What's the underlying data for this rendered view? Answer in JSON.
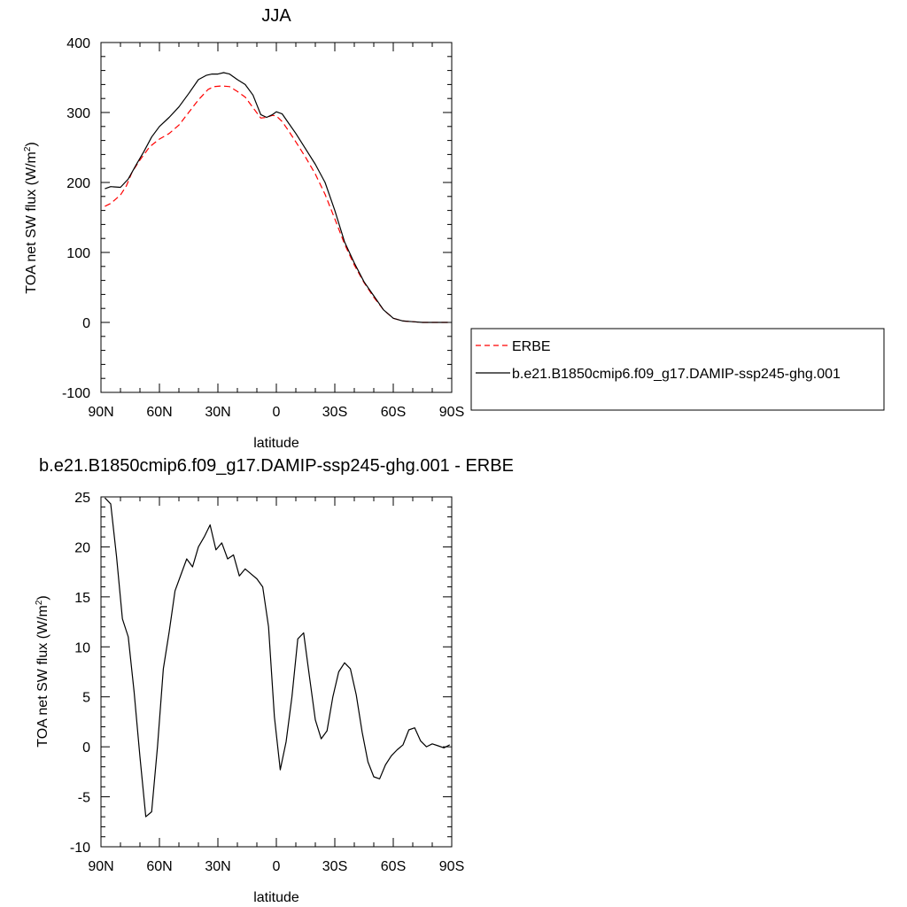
{
  "chart_data": [
    {
      "type": "line",
      "title": "JJA",
      "xlabel": "latitude",
      "ylabel": "TOA net SW flux (W/m",
      "ylabel_sup": "2",
      "ylabel_close": ")",
      "xlim": [
        90,
        -90
      ],
      "ylim": [
        -100,
        400
      ],
      "x_ticks": [
        90,
        60,
        30,
        0,
        -30,
        -60,
        -90
      ],
      "x_tick_labels": [
        "90N",
        "60N",
        "30N",
        "0",
        "30S",
        "60S",
        "90S"
      ],
      "y_ticks": [
        -100,
        0,
        100,
        200,
        300,
        400
      ],
      "y_tick_labels": [
        "-100",
        "0",
        "100",
        "200",
        "300",
        "400"
      ],
      "legend": [
        {
          "name": "ERBE",
          "color": "#ff0000",
          "dash": "dashed"
        },
        {
          "name": "b.e21.B1850cmip6.f09_g17.DAMIP-ssp245-ghg.001",
          "color": "#000000",
          "dash": "solid"
        }
      ],
      "series": [
        {
          "name": "ERBE",
          "color": "#ff0000",
          "dash": "dashed",
          "x": [
            88,
            85,
            80,
            77,
            74,
            70,
            65,
            60,
            55,
            50,
            45,
            40,
            35,
            32,
            28,
            24,
            20,
            16,
            12,
            8,
            5,
            2,
            0,
            -3,
            -6,
            -10,
            -15,
            -20,
            -25,
            -30,
            -35,
            -40,
            -45,
            -50,
            -55,
            -60,
            -65,
            -70,
            -75,
            -80,
            -85,
            -88
          ],
          "y": [
            166,
            170,
            182,
            195,
            215,
            232,
            251,
            262,
            270,
            282,
            300,
            318,
            333,
            337,
            338,
            337,
            330,
            322,
            307,
            292,
            293,
            296,
            295,
            287,
            275,
            258,
            236,
            212,
            183,
            148,
            112,
            82,
            57,
            36,
            18,
            6,
            2,
            1,
            0,
            0,
            0,
            0
          ]
        },
        {
          "name": "b.e21.B1850cmip6.f09_g17.DAMIP-ssp245-ghg.001",
          "color": "#000000",
          "dash": "solid",
          "x": [
            88,
            85,
            80,
            76,
            72,
            68,
            64,
            60,
            55,
            50,
            45,
            40,
            36,
            33,
            30,
            27,
            24,
            20,
            16,
            12,
            8,
            5,
            2,
            0,
            -3,
            -6,
            -10,
            -15,
            -20,
            -25,
            -30,
            -35,
            -40,
            -45,
            -50,
            -55,
            -60,
            -65,
            -70,
            -75,
            -80,
            -85,
            -88
          ],
          "y": [
            191,
            194,
            193,
            205,
            225,
            244,
            265,
            280,
            293,
            308,
            327,
            347,
            353,
            355,
            355,
            357,
            355,
            347,
            340,
            325,
            297,
            293,
            297,
            301,
            298,
            286,
            270,
            248,
            226,
            200,
            160,
            115,
            85,
            58,
            38,
            18,
            6,
            2,
            1,
            0,
            0,
            0,
            0
          ]
        }
      ]
    },
    {
      "type": "line",
      "title": "b.e21.B1850cmip6.f09_g17.DAMIP-ssp245-ghg.001 - ERBE",
      "xlabel": "latitude",
      "ylabel": "TOA net SW flux (W/m",
      "ylabel_sup": "2",
      "ylabel_close": ")",
      "xlim": [
        90,
        -90
      ],
      "ylim": [
        -10,
        25
      ],
      "x_ticks": [
        90,
        60,
        30,
        0,
        -30,
        -60,
        -90
      ],
      "x_tick_labels": [
        "90N",
        "60N",
        "30N",
        "0",
        "30S",
        "60S",
        "90S"
      ],
      "y_ticks": [
        -10,
        -5,
        0,
        5,
        10,
        15,
        20,
        25
      ],
      "y_tick_labels": [
        "-10",
        "-5",
        "0",
        "5",
        "10",
        "15",
        "20",
        "25"
      ],
      "series": [
        {
          "name": "b.e21.B1850cmip6.f09_g17.DAMIP-ssp245-ghg.001 - ERBE",
          "color": "#000000",
          "dash": "solid",
          "x": [
            88,
            85,
            82,
            79,
            76,
            73,
            70,
            67,
            64,
            61,
            58,
            55,
            52,
            49,
            46,
            43,
            40,
            37,
            34,
            31,
            28,
            25,
            22,
            19,
            16,
            13,
            10,
            7,
            4,
            1,
            -2,
            -5,
            -8,
            -11,
            -14,
            -17,
            -20,
            -23,
            -26,
            -29,
            -32,
            -35,
            -38,
            -41,
            -44,
            -47,
            -50,
            -53,
            -56,
            -59,
            -62,
            -65,
            -68,
            -71,
            -74,
            -77,
            -80,
            -83,
            -86,
            -89
          ],
          "y": [
            24.9,
            24.3,
            19.0,
            12.8,
            11.0,
            5.5,
            -1.0,
            -7.0,
            -6.5,
            0.0,
            7.8,
            11.5,
            15.6,
            17.2,
            18.8,
            18.0,
            20.0,
            21.0,
            22.2,
            19.7,
            20.4,
            18.8,
            19.2,
            17.1,
            17.8,
            17.3,
            16.8,
            16.0,
            12.0,
            3.0,
            -2.3,
            0.5,
            5.0,
            10.8,
            11.4,
            7.0,
            2.7,
            0.8,
            1.6,
            5.0,
            7.5,
            8.4,
            7.8,
            5.2,
            1.5,
            -1.5,
            -3.0,
            -3.2,
            -1.8,
            -0.9,
            -0.3,
            0.2,
            1.7,
            1.9,
            0.6,
            0.0,
            0.3,
            0.1,
            -0.1,
            0.2
          ]
        }
      ]
    }
  ]
}
